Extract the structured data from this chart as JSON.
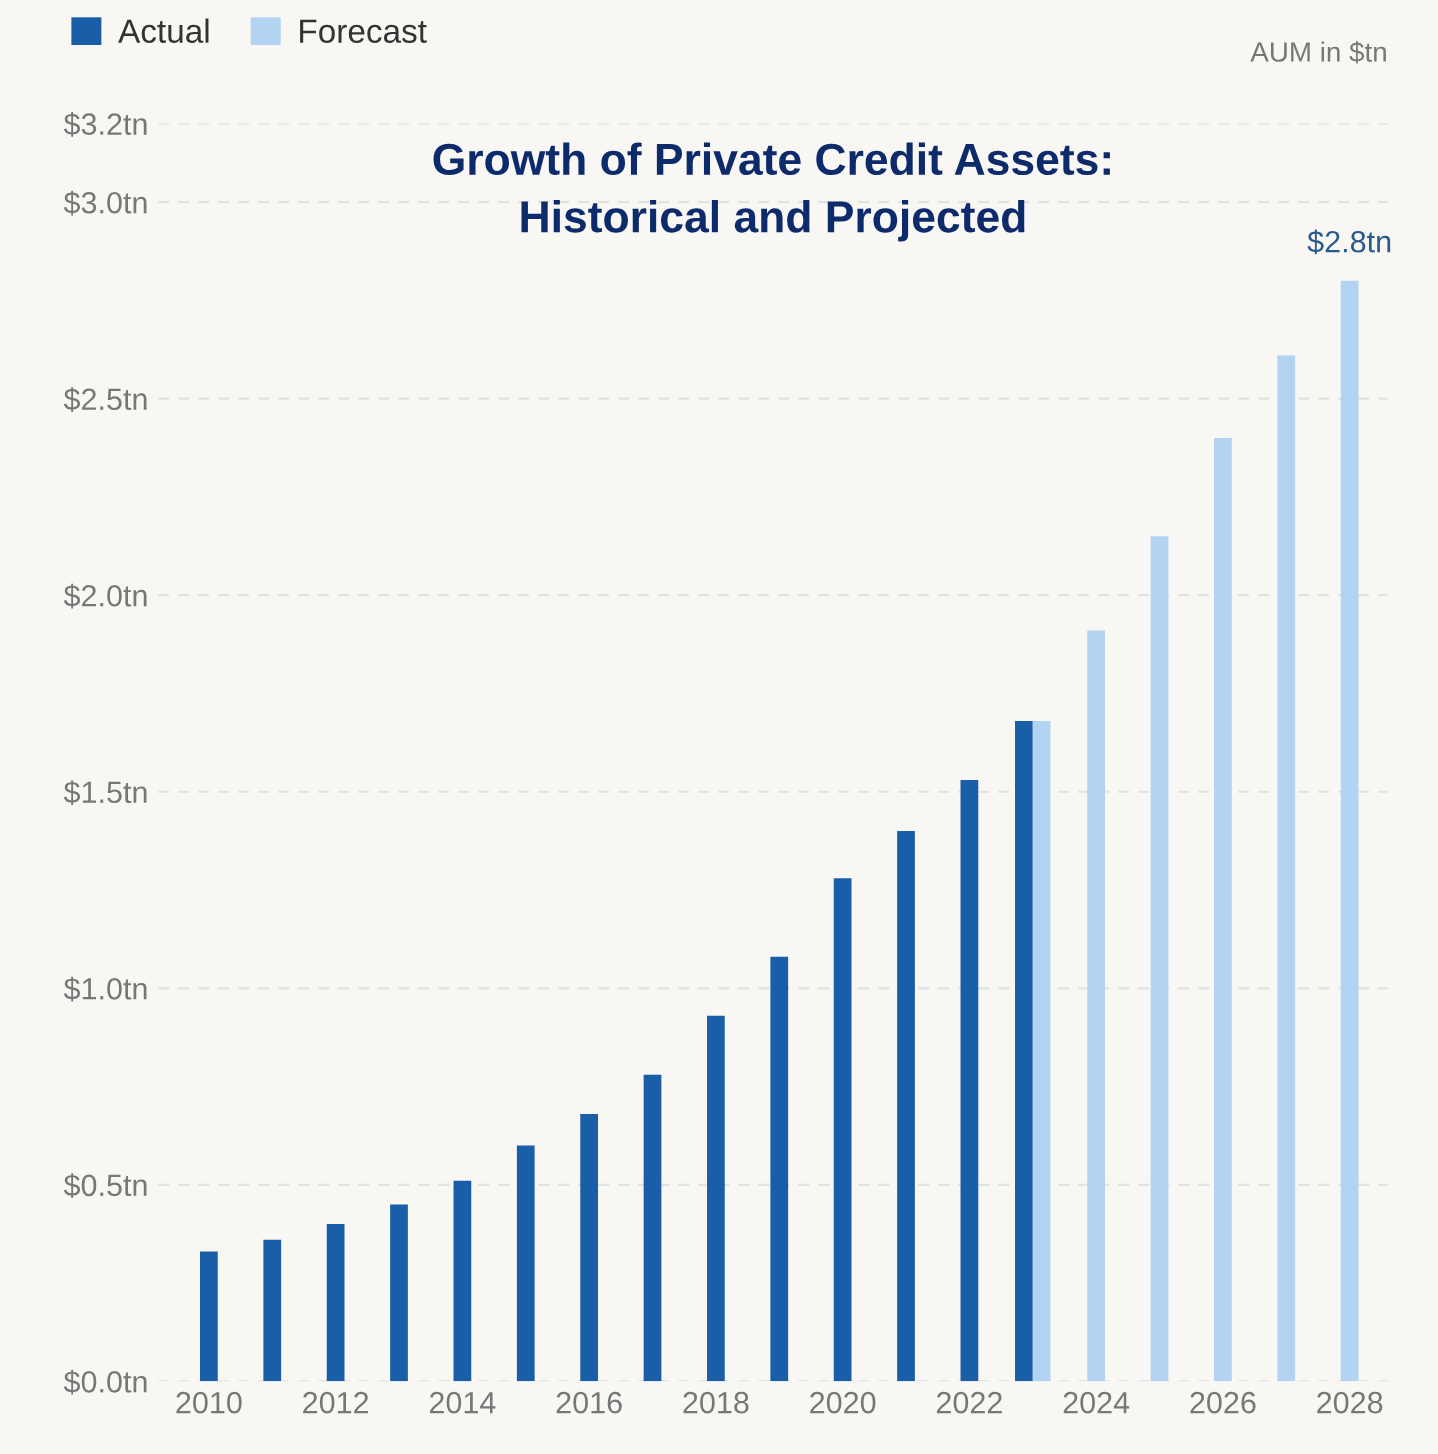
{
  "chart_data": {
    "type": "bar",
    "title": "Growth of Private Credit Assets:\nHistorical and Projected",
    "annotations": [
      "AUM in $tn"
    ],
    "categories": [
      "2010",
      null,
      "2012",
      null,
      "2014",
      null,
      "2016",
      null,
      "2018",
      null,
      "2020",
      null,
      "2022",
      null,
      "2024",
      null,
      "2026",
      null,
      "2028"
    ],
    "series": [
      {
        "name": "Actual",
        "color": "#1a5ea8",
        "values": [
          0.33,
          0.36,
          0.4,
          0.45,
          0.51,
          0.6,
          0.68,
          0.78,
          0.93,
          1.08,
          1.28,
          1.4,
          1.53,
          1.68,
          null,
          null,
          null,
          null,
          null
        ]
      },
      {
        "name": "Forecast",
        "color": "#b3d3f2",
        "values": [
          null,
          null,
          null,
          null,
          null,
          null,
          null,
          null,
          null,
          null,
          null,
          null,
          null,
          1.68,
          1.91,
          2.15,
          2.4,
          2.61,
          2.8
        ],
        "value_labels": [
          null,
          null,
          null,
          null,
          null,
          null,
          null,
          null,
          null,
          null,
          null,
          null,
          null,
          null,
          null,
          null,
          null,
          null,
          "$2.8tn"
        ]
      }
    ],
    "ylim": [
      0,
      3.2
    ],
    "yticks": [
      {
        "value": 0,
        "label": "$0.0tn"
      },
      {
        "value": 0.5,
        "label": "$0.5tn"
      },
      {
        "value": 1.0,
        "label": "$1.0tn"
      },
      {
        "value": 1.5,
        "label": "$1.5tn"
      },
      {
        "value": 2.0,
        "label": "$2.0tn"
      },
      {
        "value": 2.5,
        "label": "$2.5tn"
      },
      {
        "value": 3.0,
        "label": "$3.0tn"
      },
      {
        "value": 3.2,
        "label": "$3.2tn"
      }
    ],
    "grid": "y",
    "legend": "top left"
  }
}
